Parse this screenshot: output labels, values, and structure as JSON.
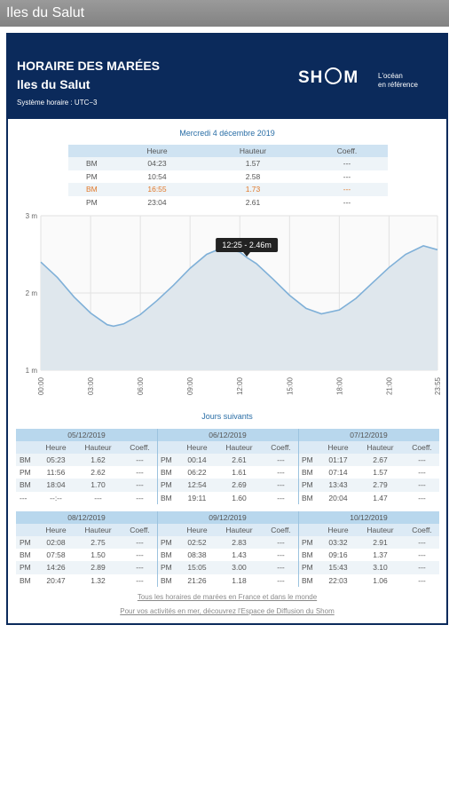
{
  "app_bar": {
    "title": "Iles du Salut"
  },
  "header": {
    "title": "HORAIRE DES MARÉES",
    "place": "Iles du Salut",
    "timezone": "Système horaire : UTC−3",
    "logo": {
      "left": "SH",
      "right": "M",
      "tagline": [
        "L'océan",
        "en référence"
      ]
    }
  },
  "today": {
    "date": "Mercredi 4 décembre 2019",
    "columns": [
      "Heure",
      "Hauteur",
      "Coeff."
    ],
    "highlight_row": 2,
    "rows": [
      [
        "BM",
        "04:23",
        "1.57",
        "---"
      ],
      [
        "PM",
        "10:54",
        "2.58",
        "---"
      ],
      [
        "BM",
        "16:55",
        "1.73",
        "---"
      ],
      [
        "PM",
        "23:04",
        "2.61",
        "---"
      ]
    ]
  },
  "chart_data": {
    "type": "area",
    "x": [
      0,
      1,
      2,
      3,
      4,
      4.38,
      5,
      6,
      7,
      8,
      9,
      10,
      10.9,
      12,
      12.42,
      13,
      14,
      15,
      16,
      16.92,
      18,
      19,
      20,
      21,
      22,
      23.07,
      23.92
    ],
    "series": [
      {
        "name": "Hauteur",
        "color": "#7fb0d8",
        "fill": "#dfe7ed",
        "values": [
          2.4,
          2.2,
          1.95,
          1.74,
          1.59,
          1.57,
          1.6,
          1.72,
          1.9,
          2.1,
          2.32,
          2.5,
          2.58,
          2.53,
          2.46,
          2.38,
          2.18,
          1.97,
          1.8,
          1.73,
          1.78,
          1.93,
          2.13,
          2.33,
          2.5,
          2.61,
          2.56
        ]
      }
    ],
    "xlim": [
      0,
      23.92
    ],
    "xticks": [
      {
        "value": 0,
        "label": "00:00"
      },
      {
        "value": 3,
        "label": "03:00"
      },
      {
        "value": 6,
        "label": "06:00"
      },
      {
        "value": 9,
        "label": "09:00"
      },
      {
        "value": 12,
        "label": "12:00"
      },
      {
        "value": 15,
        "label": "15:00"
      },
      {
        "value": 18,
        "label": "18:00"
      },
      {
        "value": 21,
        "label": "21:00"
      },
      {
        "value": 23.92,
        "label": "23:55"
      }
    ],
    "ylim": [
      1,
      3
    ],
    "yticks": [
      {
        "value": 1,
        "label": "1 m"
      },
      {
        "value": 2,
        "label": "2 m"
      },
      {
        "value": 3,
        "label": "3 m"
      }
    ],
    "grid": true,
    "tooltip": {
      "label": "12:25 - 2.46m",
      "x": 12.42,
      "y": 2.46
    }
  },
  "following_days": {
    "title": "Jours suivants",
    "columns": [
      "Heure",
      "Hauteur",
      "Coeff."
    ],
    "days": [
      {
        "date": "05/12/2019",
        "rows": [
          [
            "BM",
            "05:23",
            "1.62",
            "---"
          ],
          [
            "PM",
            "11:56",
            "2.62",
            "---"
          ],
          [
            "BM",
            "18:04",
            "1.70",
            "---"
          ],
          [
            "---",
            "--:--",
            "---",
            "---"
          ]
        ]
      },
      {
        "date": "06/12/2019",
        "rows": [
          [
            "PM",
            "00:14",
            "2.61",
            "---"
          ],
          [
            "BM",
            "06:22",
            "1.61",
            "---"
          ],
          [
            "PM",
            "12:54",
            "2.69",
            "---"
          ],
          [
            "BM",
            "19:11",
            "1.60",
            "---"
          ]
        ]
      },
      {
        "date": "07/12/2019",
        "rows": [
          [
            "PM",
            "01:17",
            "2.67",
            "---"
          ],
          [
            "BM",
            "07:14",
            "1.57",
            "---"
          ],
          [
            "PM",
            "13:43",
            "2.79",
            "---"
          ],
          [
            "BM",
            "20:04",
            "1.47",
            "---"
          ]
        ]
      },
      {
        "date": "08/12/2019",
        "rows": [
          [
            "PM",
            "02:08",
            "2.75",
            "---"
          ],
          [
            "BM",
            "07:58",
            "1.50",
            "---"
          ],
          [
            "PM",
            "14:26",
            "2.89",
            "---"
          ],
          [
            "BM",
            "20:47",
            "1.32",
            "---"
          ]
        ]
      },
      {
        "date": "09/12/2019",
        "rows": [
          [
            "PM",
            "02:52",
            "2.83",
            "---"
          ],
          [
            "BM",
            "08:38",
            "1.43",
            "---"
          ],
          [
            "PM",
            "15:05",
            "3.00",
            "---"
          ],
          [
            "BM",
            "21:26",
            "1.18",
            "---"
          ]
        ]
      },
      {
        "date": "10/12/2019",
        "rows": [
          [
            "PM",
            "03:32",
            "2.91",
            "---"
          ],
          [
            "BM",
            "09:16",
            "1.37",
            "---"
          ],
          [
            "PM",
            "15:43",
            "3.10",
            "---"
          ],
          [
            "BM",
            "22:03",
            "1.06",
            "---"
          ]
        ]
      }
    ]
  },
  "links": [
    "Tous les horaires de marées en France et dans le monde",
    "Pour vos activités en mer, découvrez l'Espace de Diffusion du Shom"
  ]
}
